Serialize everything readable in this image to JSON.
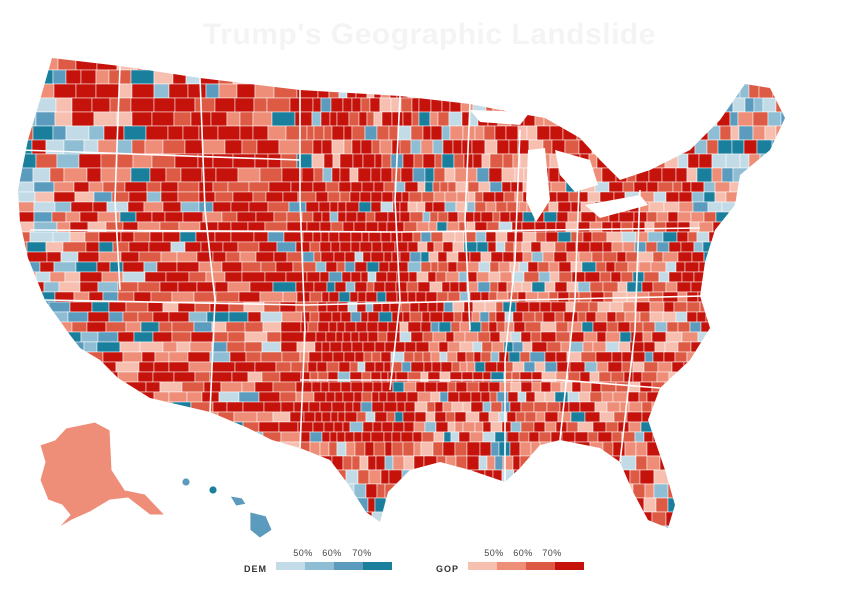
{
  "title": "Trump's Geographic Landslide",
  "legend": {
    "dem": {
      "label": "DEM",
      "ticks": [
        "50%",
        "60%",
        "70%"
      ],
      "colors": [
        "#c3dbe6",
        "#8fbdd3",
        "#5b9bbd",
        "#1a7f9d"
      ]
    },
    "gop": {
      "label": "GOP",
      "ticks": [
        "50%",
        "60%",
        "70%"
      ],
      "colors": [
        "#f6bfb0",
        "#ef8e78",
        "#dd5a44",
        "#c5120b"
      ]
    }
  },
  "map": {
    "ocean_color": "#ffffff",
    "border_color": "#ffffff",
    "regions": [
      "contiguous-us",
      "alaska",
      "hawaii"
    ]
  }
}
